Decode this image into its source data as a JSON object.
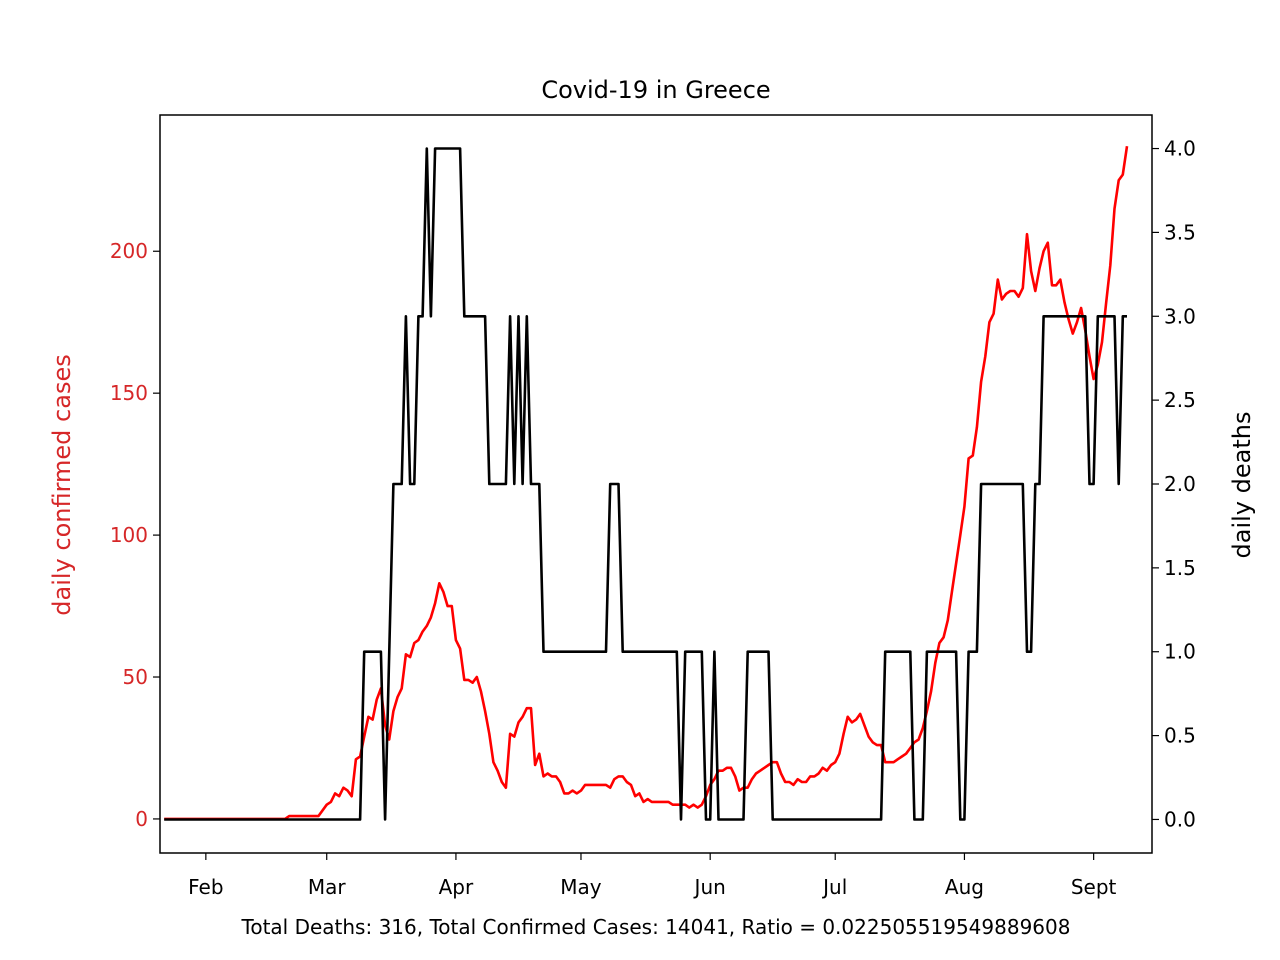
{
  "chart_data": {
    "type": "line",
    "title": "Covid-19 in Greece",
    "footer": "Total Deaths: 316,  Total Confirmed Cases: 14041,   Ratio = 0.022505519549889608",
    "x_axis": {
      "range": [
        "2020-01-21",
        "2020-09-15"
      ],
      "tick_labels": [
        "Feb",
        "Mar",
        "Apr",
        "May",
        "Jun",
        "Jul",
        "Aug",
        "Sept"
      ],
      "tick_dates": [
        "2020-02-01",
        "2020-03-01",
        "2020-04-01",
        "2020-05-01",
        "2020-06-01",
        "2020-07-01",
        "2020-08-01",
        "2020-09-01"
      ]
    },
    "y_left": {
      "label": "daily confirmed cases",
      "color": "#d62728",
      "ylim": [
        -12,
        248
      ],
      "ticks": [
        0,
        50,
        100,
        150,
        200
      ],
      "tick_labels": [
        "0",
        "50",
        "100",
        "150",
        "200"
      ]
    },
    "y_right": {
      "label": "daily deaths",
      "color": "#000000",
      "ylim": [
        -0.2,
        4.2
      ],
      "ticks": [
        0,
        0.5,
        1,
        1.5,
        2,
        2.5,
        3,
        3.5,
        4
      ],
      "tick_labels": [
        "0.0",
        "0.5",
        "1.0",
        "1.5",
        "2.0",
        "2.5",
        "3.0",
        "3.5",
        "4.0"
      ]
    },
    "series": [
      {
        "axis": "left",
        "color": "#ff0000",
        "points": [
          [
            "2020-01-22",
            0
          ],
          [
            "2020-02-20",
            0
          ],
          [
            "2020-02-21",
            1
          ],
          [
            "2020-02-28",
            1
          ],
          [
            "2020-03-01",
            5
          ],
          [
            "2020-03-02",
            6
          ],
          [
            "2020-03-03",
            9
          ],
          [
            "2020-03-04",
            8
          ],
          [
            "2020-03-05",
            11
          ],
          [
            "2020-03-06",
            10
          ],
          [
            "2020-03-07",
            8
          ],
          [
            "2020-03-08",
            21
          ],
          [
            "2020-03-09",
            22
          ],
          [
            "2020-03-10",
            29
          ],
          [
            "2020-03-11",
            36
          ],
          [
            "2020-03-12",
            35
          ],
          [
            "2020-03-13",
            42
          ],
          [
            "2020-03-14",
            46
          ],
          [
            "2020-03-15",
            33
          ],
          [
            "2020-03-16",
            28
          ],
          [
            "2020-03-17",
            38
          ],
          [
            "2020-03-18",
            43
          ],
          [
            "2020-03-19",
            46
          ],
          [
            "2020-03-20",
            58
          ],
          [
            "2020-03-21",
            57
          ],
          [
            "2020-03-22",
            62
          ],
          [
            "2020-03-23",
            63
          ],
          [
            "2020-03-24",
            66
          ],
          [
            "2020-03-25",
            68
          ],
          [
            "2020-03-26",
            71
          ],
          [
            "2020-03-27",
            76
          ],
          [
            "2020-03-28",
            83
          ],
          [
            "2020-03-29",
            80
          ],
          [
            "2020-03-30",
            75
          ],
          [
            "2020-03-31",
            75
          ],
          [
            "2020-04-01",
            63
          ],
          [
            "2020-04-02",
            60
          ],
          [
            "2020-04-03",
            49
          ],
          [
            "2020-04-04",
            49
          ],
          [
            "2020-04-05",
            48
          ],
          [
            "2020-04-06",
            50
          ],
          [
            "2020-04-07",
            45
          ],
          [
            "2020-04-08",
            38
          ],
          [
            "2020-04-09",
            30
          ],
          [
            "2020-04-10",
            20
          ],
          [
            "2020-04-11",
            17
          ],
          [
            "2020-04-12",
            13
          ],
          [
            "2020-04-13",
            11
          ],
          [
            "2020-04-14",
            30
          ],
          [
            "2020-04-15",
            29
          ],
          [
            "2020-04-16",
            34
          ],
          [
            "2020-04-17",
            36
          ],
          [
            "2020-04-18",
            39
          ],
          [
            "2020-04-19",
            39
          ],
          [
            "2020-04-20",
            19
          ],
          [
            "2020-04-21",
            23
          ],
          [
            "2020-04-22",
            15
          ],
          [
            "2020-04-23",
            16
          ],
          [
            "2020-04-24",
            15
          ],
          [
            "2020-04-25",
            15
          ],
          [
            "2020-04-26",
            13
          ],
          [
            "2020-04-27",
            9
          ],
          [
            "2020-04-28",
            9
          ],
          [
            "2020-04-29",
            10
          ],
          [
            "2020-04-30",
            9
          ],
          [
            "2020-05-01",
            10
          ],
          [
            "2020-05-02",
            12
          ],
          [
            "2020-05-04",
            12
          ],
          [
            "2020-05-07",
            12
          ],
          [
            "2020-05-08",
            11
          ],
          [
            "2020-05-09",
            14
          ],
          [
            "2020-05-10",
            15
          ],
          [
            "2020-05-11",
            15
          ],
          [
            "2020-05-12",
            13
          ],
          [
            "2020-05-13",
            12
          ],
          [
            "2020-05-14",
            8
          ],
          [
            "2020-05-15",
            9
          ],
          [
            "2020-05-16",
            6
          ],
          [
            "2020-05-17",
            7
          ],
          [
            "2020-05-18",
            6
          ],
          [
            "2020-05-20",
            6
          ],
          [
            "2020-05-22",
            6
          ],
          [
            "2020-05-23",
            5
          ],
          [
            "2020-05-24",
            5
          ],
          [
            "2020-05-26",
            5
          ],
          [
            "2020-05-27",
            4
          ],
          [
            "2020-05-28",
            5
          ],
          [
            "2020-05-29",
            4
          ],
          [
            "2020-05-30",
            5
          ],
          [
            "2020-05-31",
            8
          ],
          [
            "2020-06-01",
            12
          ],
          [
            "2020-06-02",
            14
          ],
          [
            "2020-06-03",
            17
          ],
          [
            "2020-06-04",
            17
          ],
          [
            "2020-06-05",
            18
          ],
          [
            "2020-06-06",
            18
          ],
          [
            "2020-06-07",
            15
          ],
          [
            "2020-06-08",
            10
          ],
          [
            "2020-06-09",
            11
          ],
          [
            "2020-06-10",
            11
          ],
          [
            "2020-06-11",
            14
          ],
          [
            "2020-06-12",
            16
          ],
          [
            "2020-06-13",
            17
          ],
          [
            "2020-06-14",
            18
          ],
          [
            "2020-06-15",
            19
          ],
          [
            "2020-06-16",
            20
          ],
          [
            "2020-06-17",
            20
          ],
          [
            "2020-06-18",
            16
          ],
          [
            "2020-06-19",
            13
          ],
          [
            "2020-06-20",
            13
          ],
          [
            "2020-06-21",
            12
          ],
          [
            "2020-06-22",
            14
          ],
          [
            "2020-06-23",
            13
          ],
          [
            "2020-06-24",
            13
          ],
          [
            "2020-06-25",
            15
          ],
          [
            "2020-06-26",
            15
          ],
          [
            "2020-06-27",
            16
          ],
          [
            "2020-06-28",
            18
          ],
          [
            "2020-06-29",
            17
          ],
          [
            "2020-06-30",
            19
          ],
          [
            "2020-07-01",
            20
          ],
          [
            "2020-07-02",
            23
          ],
          [
            "2020-07-03",
            30
          ],
          [
            "2020-07-04",
            36
          ],
          [
            "2020-07-05",
            34
          ],
          [
            "2020-07-06",
            35
          ],
          [
            "2020-07-07",
            37
          ],
          [
            "2020-07-08",
            33
          ],
          [
            "2020-07-09",
            29
          ],
          [
            "2020-07-10",
            27
          ],
          [
            "2020-07-11",
            26
          ],
          [
            "2020-07-12",
            26
          ],
          [
            "2020-07-13",
            20
          ],
          [
            "2020-07-14",
            20
          ],
          [
            "2020-07-15",
            20
          ],
          [
            "2020-07-16",
            21
          ],
          [
            "2020-07-17",
            22
          ],
          [
            "2020-07-18",
            23
          ],
          [
            "2020-07-19",
            25
          ],
          [
            "2020-07-20",
            27
          ],
          [
            "2020-07-21",
            28
          ],
          [
            "2020-07-22",
            32
          ],
          [
            "2020-07-23",
            38
          ],
          [
            "2020-07-24",
            45
          ],
          [
            "2020-07-25",
            55
          ],
          [
            "2020-07-26",
            62
          ],
          [
            "2020-07-27",
            64
          ],
          [
            "2020-07-28",
            70
          ],
          [
            "2020-07-29",
            80
          ],
          [
            "2020-07-30",
            90
          ],
          [
            "2020-07-31",
            100
          ],
          [
            "2020-08-01",
            110
          ],
          [
            "2020-08-02",
            127
          ],
          [
            "2020-08-03",
            128
          ],
          [
            "2020-08-04",
            138
          ],
          [
            "2020-08-05",
            154
          ],
          [
            "2020-08-06",
            163
          ],
          [
            "2020-08-07",
            175
          ],
          [
            "2020-08-08",
            178
          ],
          [
            "2020-08-09",
            190
          ],
          [
            "2020-08-10",
            183
          ],
          [
            "2020-08-11",
            185
          ],
          [
            "2020-08-12",
            186
          ],
          [
            "2020-08-13",
            186
          ],
          [
            "2020-08-14",
            184
          ],
          [
            "2020-08-15",
            187
          ],
          [
            "2020-08-16",
            206
          ],
          [
            "2020-08-17",
            193
          ],
          [
            "2020-08-18",
            186
          ],
          [
            "2020-08-19",
            194
          ],
          [
            "2020-08-20",
            200
          ],
          [
            "2020-08-21",
            203
          ],
          [
            "2020-08-22",
            188
          ],
          [
            "2020-08-23",
            188
          ],
          [
            "2020-08-24",
            190
          ],
          [
            "2020-08-25",
            182
          ],
          [
            "2020-08-26",
            176
          ],
          [
            "2020-08-27",
            171
          ],
          [
            "2020-08-28",
            175
          ],
          [
            "2020-08-29",
            180
          ],
          [
            "2020-08-30",
            172
          ],
          [
            "2020-08-31",
            163
          ],
          [
            "2020-09-01",
            155
          ],
          [
            "2020-09-02",
            160
          ],
          [
            "2020-09-03",
            168
          ],
          [
            "2020-09-04",
            182
          ],
          [
            "2020-09-05",
            195
          ],
          [
            "2020-09-06",
            215
          ],
          [
            "2020-09-07",
            225
          ],
          [
            "2020-09-08",
            227
          ],
          [
            "2020-09-09",
            237
          ]
        ]
      },
      {
        "axis": "right",
        "color": "#000000",
        "points": [
          [
            "2020-01-22",
            0
          ],
          [
            "2020-03-09",
            0
          ],
          [
            "2020-03-10",
            1
          ],
          [
            "2020-03-14",
            1
          ],
          [
            "2020-03-15",
            0
          ],
          [
            "2020-03-17",
            2
          ],
          [
            "2020-03-19",
            2
          ],
          [
            "2020-03-20",
            3
          ],
          [
            "2020-03-21",
            2
          ],
          [
            "2020-03-22",
            2
          ],
          [
            "2020-03-23",
            3
          ],
          [
            "2020-03-24",
            3
          ],
          [
            "2020-03-25",
            4
          ],
          [
            "2020-03-26",
            3
          ],
          [
            "2020-03-27",
            4
          ],
          [
            "2020-04-02",
            4
          ],
          [
            "2020-04-03",
            3
          ],
          [
            "2020-04-08",
            3
          ],
          [
            "2020-04-09",
            2
          ],
          [
            "2020-04-13",
            2
          ],
          [
            "2020-04-14",
            3
          ],
          [
            "2020-04-15",
            2
          ],
          [
            "2020-04-16",
            3
          ],
          [
            "2020-04-17",
            2
          ],
          [
            "2020-04-18",
            3
          ],
          [
            "2020-04-19",
            2
          ],
          [
            "2020-04-21",
            2
          ],
          [
            "2020-04-22",
            1
          ],
          [
            "2020-05-07",
            1
          ],
          [
            "2020-05-08",
            2
          ],
          [
            "2020-05-10",
            2
          ],
          [
            "2020-05-11",
            1
          ],
          [
            "2020-05-24",
            1
          ],
          [
            "2020-05-25",
            0
          ],
          [
            "2020-05-26",
            1
          ],
          [
            "2020-05-30",
            1
          ],
          [
            "2020-05-31",
            0
          ],
          [
            "2020-06-01",
            0
          ],
          [
            "2020-06-02",
            1
          ],
          [
            "2020-06-03",
            0
          ],
          [
            "2020-06-09",
            0
          ],
          [
            "2020-06-10",
            1
          ],
          [
            "2020-06-15",
            1
          ],
          [
            "2020-06-16",
            0
          ],
          [
            "2020-07-12",
            0
          ],
          [
            "2020-07-13",
            1
          ],
          [
            "2020-07-19",
            1
          ],
          [
            "2020-07-20",
            0
          ],
          [
            "2020-07-22",
            0
          ],
          [
            "2020-07-23",
            1
          ],
          [
            "2020-07-30",
            1
          ],
          [
            "2020-07-31",
            0
          ],
          [
            "2020-08-01",
            0
          ],
          [
            "2020-08-02",
            1
          ],
          [
            "2020-08-04",
            1
          ],
          [
            "2020-08-05",
            2
          ],
          [
            "2020-08-15",
            2
          ],
          [
            "2020-08-16",
            1
          ],
          [
            "2020-08-17",
            1
          ],
          [
            "2020-08-18",
            2
          ],
          [
            "2020-08-19",
            2
          ],
          [
            "2020-08-20",
            3
          ],
          [
            "2020-08-30",
            3
          ],
          [
            "2020-08-31",
            2
          ],
          [
            "2020-09-01",
            2
          ],
          [
            "2020-09-02",
            3
          ],
          [
            "2020-09-06",
            3
          ],
          [
            "2020-09-07",
            2
          ],
          [
            "2020-09-08",
            3
          ],
          [
            "2020-09-09",
            3
          ]
        ]
      }
    ]
  }
}
